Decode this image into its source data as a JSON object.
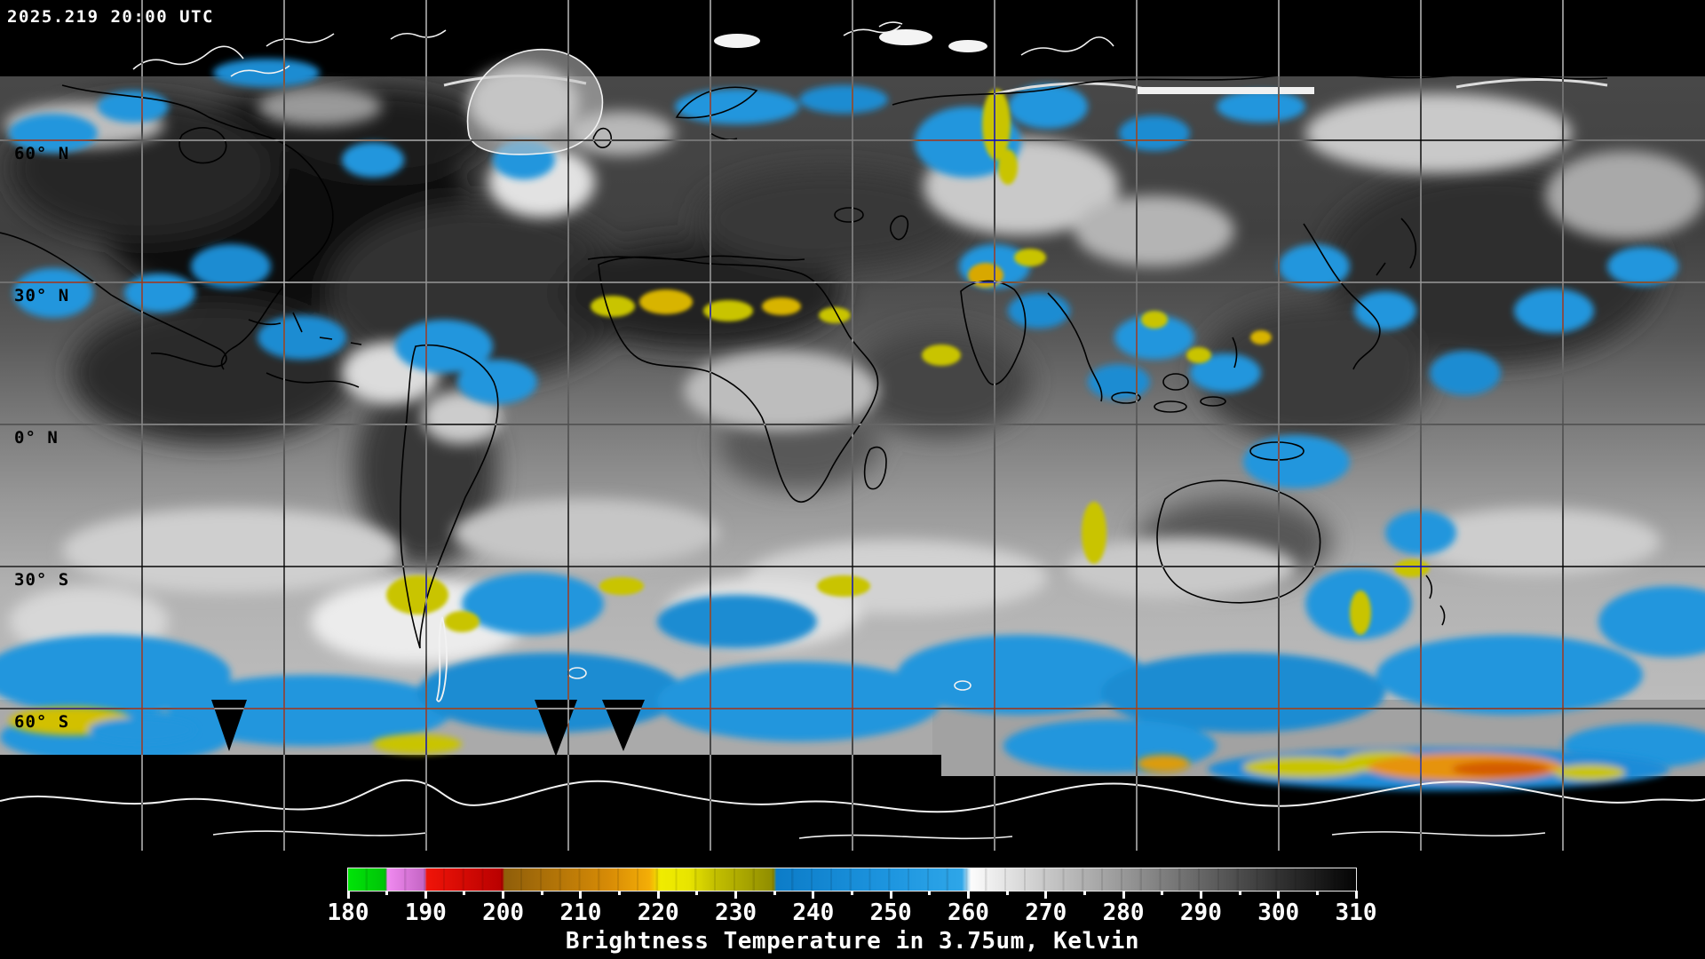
{
  "timestamp": "2025.219 20:00 UTC",
  "map": {
    "description": "global satellite brightness-temperature composite, plate carree projection",
    "latitude_labels": [
      "60° N",
      "30° N",
      "0° N",
      "30° S",
      "60° S"
    ],
    "grid_interval_degrees": 30,
    "coastline_colors": {
      "over_data": "#000000",
      "over_space": "#f2f2f2"
    },
    "cloud_palette": {
      "cold_cloud_blue": "#2196dd",
      "convection_yellow": "#c9c400",
      "convection_orange": "#e6930a",
      "convection_red_core": "#d45c06"
    }
  },
  "colorbar": {
    "title": "Brightness Temperature in 3.75um, Kelvin",
    "units": "Kelvin",
    "min": 180,
    "max": 310,
    "labeled_tick_step": 10,
    "minor_tick_step": 5,
    "tick_labels": [
      "180",
      "190",
      "200",
      "210",
      "220",
      "230",
      "240",
      "250",
      "260",
      "270",
      "280",
      "290",
      "300",
      "310"
    ],
    "segments": [
      {
        "from": 180,
        "to": 185,
        "color": "#00dc08"
      },
      {
        "from": 185,
        "to": 190,
        "color": "#e07ee0"
      },
      {
        "from": 190,
        "to": 200,
        "color": "#d80404"
      },
      {
        "from": 200,
        "to": 220,
        "color": "#d88c06"
      },
      {
        "from": 220,
        "to": 225,
        "color": "#ecec00"
      },
      {
        "from": 225,
        "to": 235,
        "color": "#9a9600"
      },
      {
        "from": 235,
        "to": 260,
        "color": "#1a8ed8"
      },
      {
        "from": 260,
        "to": 310,
        "color_start": "#ffffff",
        "color_end": "#000000"
      }
    ]
  }
}
